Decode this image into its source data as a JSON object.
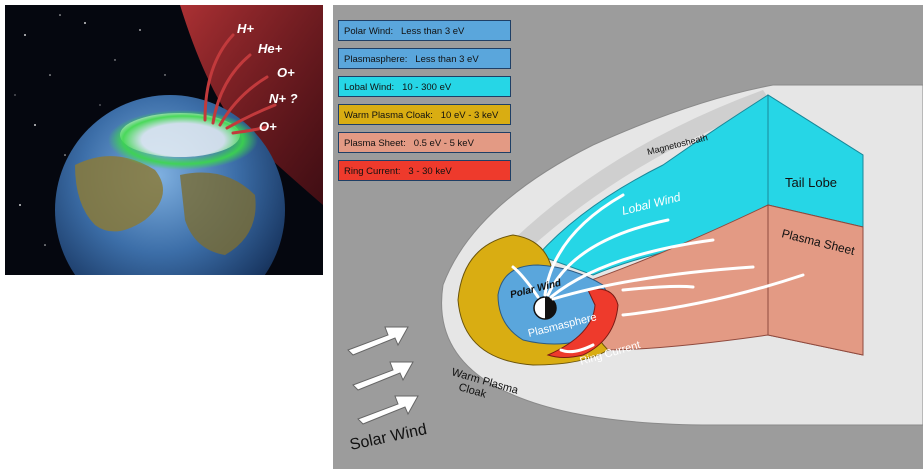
{
  "ion_labels": [
    "H+",
    "He+",
    "O+",
    "N+ ?",
    "O+"
  ],
  "legend": [
    {
      "label": "Polar Wind:   Less than 3 eV",
      "color": "#5aa6dc"
    },
    {
      "label": "Plasmasphere:   Less than 3 eV",
      "color": "#5aa6dc"
    },
    {
      "label": "Lobal Wind:   10 - 300 eV",
      "color": "#26d6e6"
    },
    {
      "label": "Warm Plasma Cloak:   10 eV - 3 keV",
      "color": "#d9ad12"
    },
    {
      "label": "Plasma Sheet:   0.5 eV - 5 keV",
      "color": "#e39a84"
    },
    {
      "label": "Ring Current:   3 - 30 keV",
      "color": "#ee3a2c"
    }
  ],
  "diagram_labels": {
    "magnetosheath": "Magnetosheath",
    "lobal_wind": "Lobal Wind",
    "tail_lobe": "Tail Lobe",
    "plasma_sheet": "Plasma Sheet",
    "polar_wind": "Polar Wind",
    "plasmasphere": "Plasmasphere",
    "ring_current": "Ring Current",
    "warm_plasma_cloak_1": "Warm Plasma",
    "warm_plasma_cloak_2": "Cloak",
    "solar_wind": "Solar Wind"
  },
  "colors": {
    "space": "#05070f",
    "aurora": "#3bd84a",
    "outflow": "#c8383a",
    "background_gray": "#9c9c9c",
    "magnetosphere_outer": "#e6e6e6",
    "lobe": "#26d6e6",
    "plasma_sheet": "#e39a84",
    "cloak": "#d9ad12",
    "plasmasphere": "#5aa6dc",
    "ring_current": "#ee3a2c"
  }
}
